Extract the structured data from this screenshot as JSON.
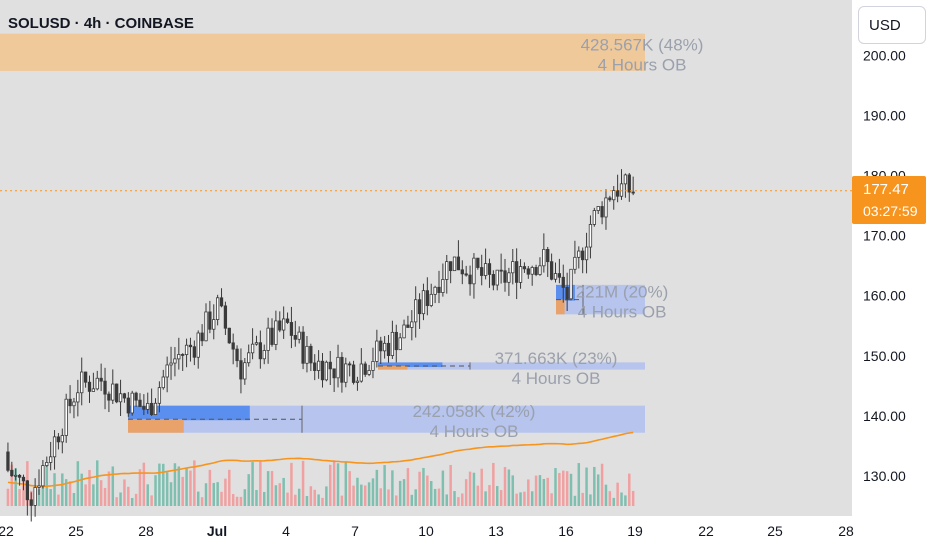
{
  "header": {
    "title": "SOLUSD · 4h · COINBASE",
    "currency_label": "USD"
  },
  "price_tag": {
    "last_price": "177.47",
    "countdown": "03:27:59"
  },
  "colors": {
    "background": "#e0e0e0",
    "axis_panel": "#ffffff",
    "candle": "#3a3a3a",
    "up_volume": "#7fbfb0",
    "down_volume": "#f0a0a0",
    "ma_line": "#f7941d",
    "ob_bull": "#b3c2ee",
    "ob_bull_fill": "#5a8ff0",
    "ob_bear": "#f0c797",
    "ob_bear_fill": "#e8a26a",
    "last_price": "#f7941d"
  },
  "chart_data": {
    "type": "candlestick",
    "symbol": "SOLUSD",
    "interval": "4h",
    "exchange": "COINBASE",
    "y_axis": {
      "ticks": [
        "130.00",
        "140.00",
        "150.00",
        "160.00",
        "170.00",
        "180.00",
        "190.00",
        "200.00"
      ],
      "range": [
        124,
        208
      ]
    },
    "x_axis": {
      "ticks": [
        "22",
        "25",
        "28",
        "Jul",
        "4",
        "7",
        "10",
        "13",
        "16",
        "19",
        "22",
        "25",
        "28"
      ]
    },
    "last_price": 177.47,
    "close_series": [
      {
        "x": "Jun 22",
        "y": 131
      },
      {
        "x": "Jun 23",
        "y": 127
      },
      {
        "x": "Jun 24",
        "y": 136
      },
      {
        "x": "Jun 25",
        "y": 145
      },
      {
        "x": "Jun 26",
        "y": 146
      },
      {
        "x": "Jun 27",
        "y": 143
      },
      {
        "x": "Jun 28",
        "y": 141
      },
      {
        "x": "Jun 29",
        "y": 149
      },
      {
        "x": "Jun 30",
        "y": 152
      },
      {
        "x": "Jul 1",
        "y": 158
      },
      {
        "x": "Jul 2",
        "y": 148
      },
      {
        "x": "Jul 3",
        "y": 152
      },
      {
        "x": "Jul 4",
        "y": 155
      },
      {
        "x": "Jul 5",
        "y": 149
      },
      {
        "x": "Jul 6",
        "y": 148
      },
      {
        "x": "Jul 7",
        "y": 148
      },
      {
        "x": "Jul 8",
        "y": 151
      },
      {
        "x": "Jul 9",
        "y": 154
      },
      {
        "x": "Jul 10",
        "y": 160
      },
      {
        "x": "Jul 11",
        "y": 166
      },
      {
        "x": "Jul 12",
        "y": 164
      },
      {
        "x": "Jul 13",
        "y": 162
      },
      {
        "x": "Jul 14",
        "y": 165
      },
      {
        "x": "Jul 15",
        "y": 166
      },
      {
        "x": "Jul 16",
        "y": 160
      },
      {
        "x": "Jul 17",
        "y": 172
      },
      {
        "x": "Jul 18",
        "y": 178
      },
      {
        "x": "Jul 19",
        "y": 177.47
      }
    ],
    "order_blocks": [
      {
        "label_value": "428.567K (48%)",
        "label_tf": "4 Hours OB",
        "type": "bearish",
        "top": 203.6,
        "bottom": 197.4
      },
      {
        "label_value": "221M (20%)",
        "label_tf": "4 Hours OB",
        "type": "bullish",
        "top": 161.8,
        "bottom": 156.9
      },
      {
        "label_value": "371.663K (23%)",
        "label_tf": "4 Hours OB",
        "type": "bullish",
        "top": 148.9,
        "bottom": 147.7
      },
      {
        "label_value": "242.058K (42%)",
        "label_tf": "4 Hours OB",
        "type": "bullish",
        "top": 141.7,
        "bottom": 137.2
      }
    ]
  }
}
